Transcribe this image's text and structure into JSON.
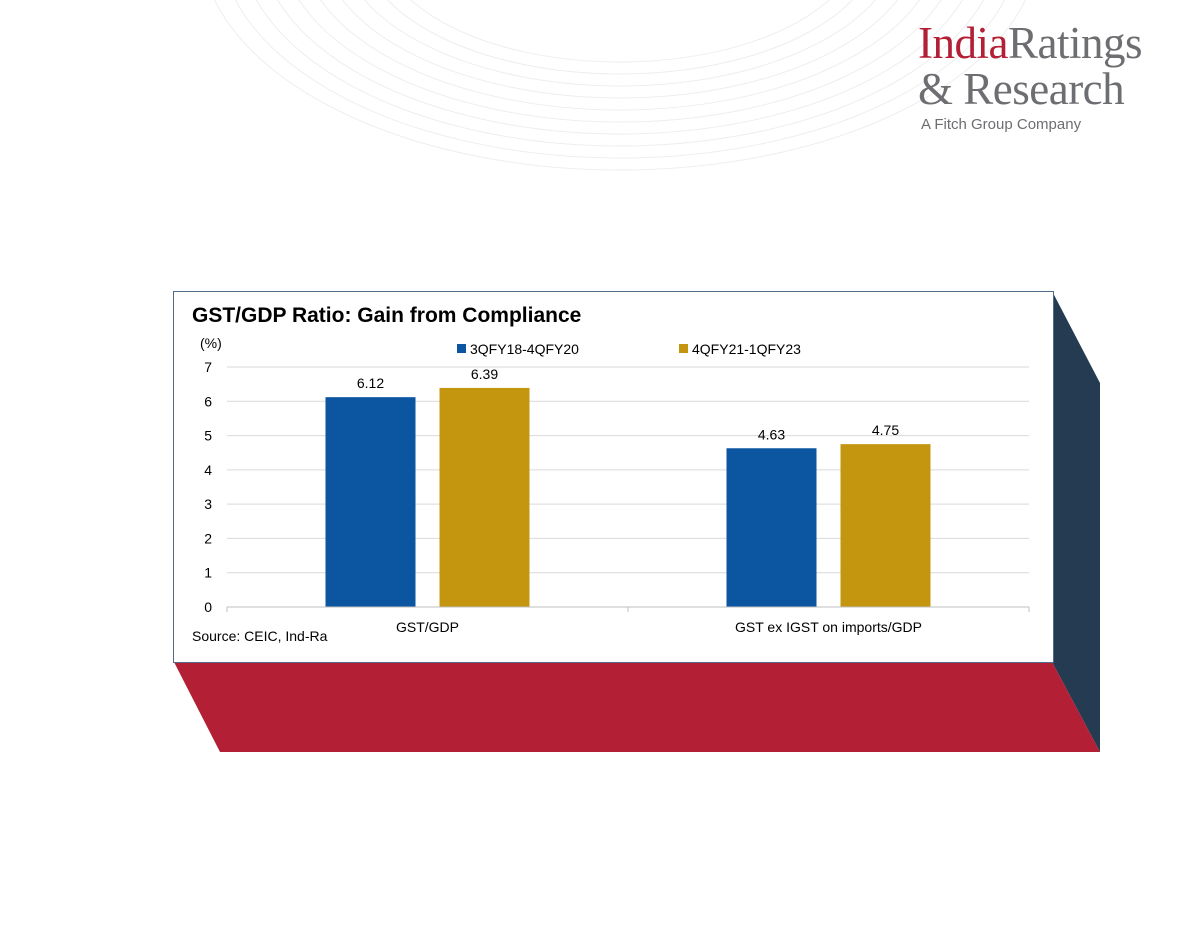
{
  "colors": {
    "series_1": "#0b55a1",
    "series_2": "#c4960f",
    "side_panel": "#243b52",
    "bottom_panel": "#b31f35",
    "logo_red": "#b31f35",
    "logo_grey": "#6d6e71"
  },
  "logo": {
    "word_india": "India",
    "word_ratings": "Ratings",
    "line2": "& Research",
    "tagline": "A Fitch Group Company"
  },
  "chart_data": {
    "type": "bar",
    "title": "GST/GDP Ratio: Gain from Compliance",
    "ylabel": "(%)",
    "xlabel": "",
    "categories": [
      "GST/GDP",
      "GST ex IGST on imports/GDP"
    ],
    "series": [
      {
        "name": "3QFY18-4QFY20",
        "values": [
          6.12,
          4.63
        ],
        "labels": [
          "6.12",
          "4.63"
        ]
      },
      {
        "name": "4QFY21-1QFY23",
        "values": [
          6.39,
          4.75
        ],
        "labels": [
          "6.39",
          "4.75"
        ]
      }
    ],
    "ylim": [
      0,
      7
    ],
    "yticks": [
      "0",
      "1",
      "2",
      "3",
      "4",
      "5",
      "6",
      "7"
    ],
    "grid": true,
    "legend": "top",
    "source": "Source: CEIC, Ind-Ra"
  }
}
